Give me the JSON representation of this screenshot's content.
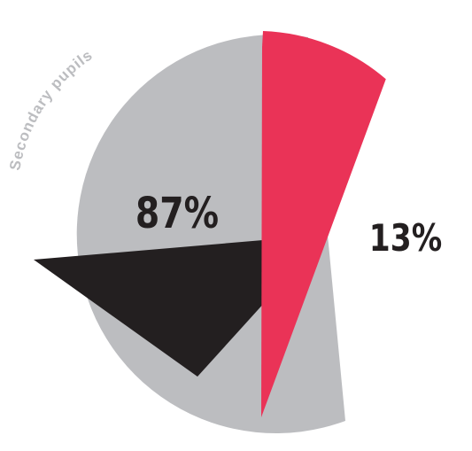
{
  "chart_data": {
    "type": "pie",
    "title": "",
    "slices": [
      {
        "label": "87%",
        "value": 87,
        "color": "#bcbdc0"
      },
      {
        "label": "13%",
        "value": 13,
        "color": "#ea3357"
      }
    ],
    "inner_wedge_color": "#231f20",
    "series_label": "Secondary pupils",
    "series_label_color": "#bcbdc0",
    "legend": "none"
  }
}
